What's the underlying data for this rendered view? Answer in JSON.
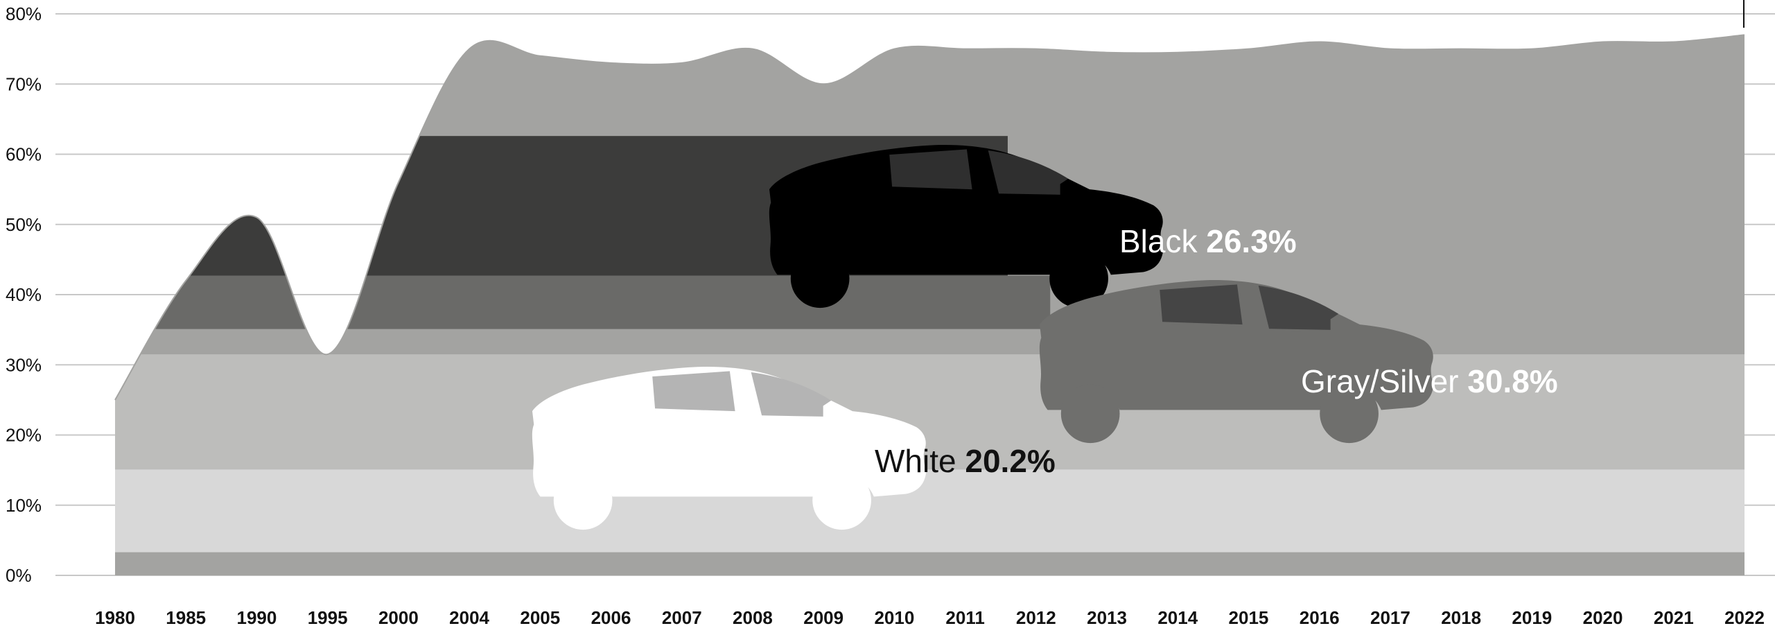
{
  "chart_data": {
    "type": "area",
    "title": "",
    "xlabel": "",
    "ylabel": "",
    "ylim": [
      0,
      80
    ],
    "y_ticks": [
      "0%",
      "10%",
      "20%",
      "30%",
      "40%",
      "50%",
      "60%",
      "70%",
      "80%"
    ],
    "x_ticks": [
      "1980",
      "1985",
      "1990",
      "1995",
      "2000",
      "2004",
      "2005",
      "2006",
      "2007",
      "2008",
      "2009",
      "2010",
      "2011",
      "2012",
      "2013",
      "2014",
      "2015",
      "2016",
      "2017",
      "2018",
      "2019",
      "2020",
      "2021",
      "2022"
    ],
    "grid": true,
    "series": [
      {
        "name": "Gray/Silver",
        "highlight_value": "30.8%",
        "color": "#6f6f6d",
        "values": [
          null,
          null,
          null,
          null,
          null,
          null,
          null,
          null,
          null,
          null,
          null,
          null,
          null,
          null,
          null,
          null,
          null,
          null,
          null,
          null,
          null,
          null,
          null,
          30.8
        ]
      },
      {
        "name": "Black",
        "highlight_value": "26.3%",
        "color": "#000000",
        "values": [
          null,
          null,
          null,
          null,
          null,
          null,
          null,
          null,
          null,
          null,
          null,
          null,
          null,
          null,
          null,
          null,
          null,
          null,
          null,
          null,
          null,
          null,
          null,
          26.3
        ]
      },
      {
        "name": "White",
        "highlight_value": "20.2%",
        "color": "#ffffff",
        "values": [
          null,
          null,
          null,
          null,
          null,
          null,
          null,
          null,
          null,
          null,
          null,
          null,
          null,
          null,
          null,
          null,
          null,
          null,
          null,
          null,
          null,
          null,
          null,
          20.2
        ]
      },
      {
        "name": "",
        "color": "#a3a3a1",
        "values": [
          25,
          42,
          51,
          31.5,
          56,
          75,
          74,
          73,
          73,
          75,
          70,
          75,
          75,
          75,
          74.5,
          74.5,
          75,
          76,
          75,
          75,
          75,
          76,
          76,
          77
        ]
      }
    ],
    "band_colors": [
      "#a3a3a1",
      "#d8d8d8",
      "#bdbdbb",
      "#a3a3a1",
      "#6a6a68",
      "#3c3c3b",
      "#a3a3a1"
    ],
    "car_colors": {
      "black_car": "#000000",
      "gray_car": "#6f6f6d",
      "white_car": "#ffffff"
    }
  }
}
